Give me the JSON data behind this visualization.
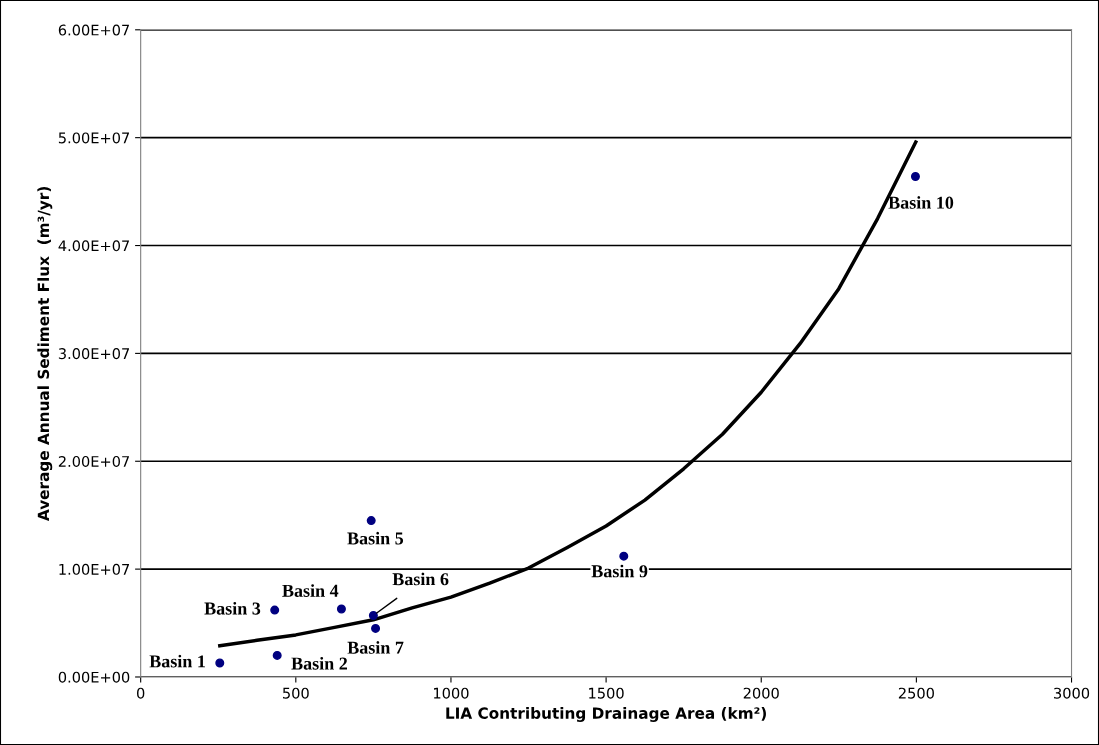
{
  "chart_data": {
    "type": "scatter",
    "xlabel": "LIA Contributing Drainage Area (km²)",
    "ylabel": "Average Annual Sediment Flux  (m³/yr)",
    "xlim": [
      0,
      3000
    ],
    "xticks": [
      0,
      500,
      1000,
      1500,
      2000,
      2500,
      3000
    ],
    "ylim": [
      0,
      60000000
    ],
    "yticks": [
      {
        "value": 0,
        "label": "0.00E+00"
      },
      {
        "value": 10000000,
        "label": "1.00E+07"
      },
      {
        "value": 20000000,
        "label": "2.00E+07"
      },
      {
        "value": 30000000,
        "label": "3.00E+07"
      },
      {
        "value": 40000000,
        "label": "4.00E+07"
      },
      {
        "value": 50000000,
        "label": "5.00E+07"
      },
      {
        "value": 60000000,
        "label": "6.00E+07"
      }
    ],
    "grid": "y",
    "marker": "circle",
    "series": [
      {
        "color": "#000080",
        "x": [
          255,
          440,
          432,
          647,
          743,
          750,
          757,
          1557,
          2497
        ],
        "values": [
          1300000,
          2000000,
          6200000,
          6300000,
          14500000,
          5700000,
          4500000,
          11200000,
          46400000
        ]
      },
      {
        "type": "line",
        "color": "#000000",
        "line_style": "solid",
        "marker": "none",
        "x": [
          255,
          375,
          500,
          625,
          750,
          875,
          1000,
          1125,
          1250,
          1375,
          1500,
          1625,
          1750,
          1875,
          2000,
          2125,
          2250,
          2375,
          2498
        ],
        "values": [
          2900000,
          3400000,
          3900000,
          4600000,
          5300000,
          6400000,
          7400000,
          8700000,
          10100000,
          12000000,
          14000000,
          16400000,
          19300000,
          22500000,
          26400000,
          30900000,
          36000000,
          42500000,
          49600000
        ]
      }
    ],
    "annotations": [
      {
        "text": "Basin 1",
        "x": 255,
        "y": 1300000
      },
      {
        "text": "Basin 2",
        "x": 440,
        "y": 2000000
      },
      {
        "text": "Basin 3",
        "x": 432,
        "y": 6200000
      },
      {
        "text": "Basin 4",
        "x": 647,
        "y": 6300000
      },
      {
        "text": "Basin 5",
        "x": 743,
        "y": 14500000
      },
      {
        "text": "Basin 6",
        "x": 750,
        "y": 5700000
      },
      {
        "text": "Basin 7",
        "x": 757,
        "y": 4500000
      },
      {
        "text": "Basin 9",
        "x": 1557,
        "y": 11200000
      },
      {
        "text": "Basin 10",
        "x": 2497,
        "y": 46400000
      }
    ]
  }
}
